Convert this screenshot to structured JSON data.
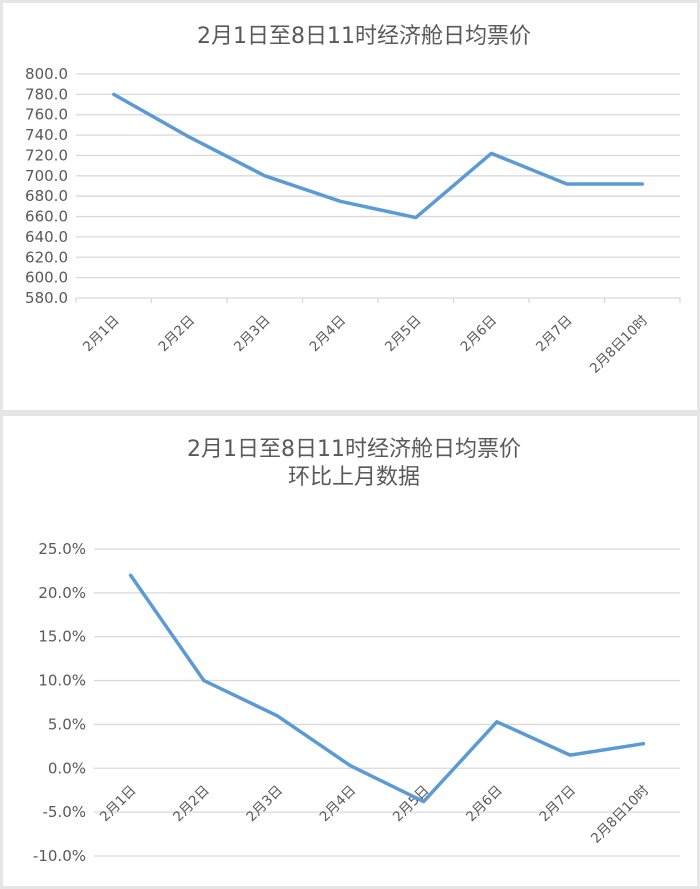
{
  "colors": {
    "line": "#5b9bd5",
    "grid": "#d9d9d9",
    "text": "#595959"
  },
  "chart_data": [
    {
      "type": "line",
      "title": "2月1日至8日11时经济舱日均票价",
      "xlabel": "",
      "ylabel": "",
      "categories": [
        "2月1日",
        "2月2日",
        "2月3日",
        "2月4日",
        "2月5日",
        "2月6日",
        "2月7日",
        "2月8日10时"
      ],
      "series": [
        {
          "name": "经济舱日均票价",
          "values": [
            780,
            738,
            700,
            675,
            659,
            722,
            692,
            692
          ]
        }
      ],
      "ylim": [
        580,
        800
      ],
      "yticks": [
        "800.0",
        "780.0",
        "760.0",
        "740.0",
        "720.0",
        "700.0",
        "680.0",
        "660.0",
        "640.0",
        "620.0",
        "600.0",
        "580.0"
      ],
      "grid": true,
      "legend": "none"
    },
    {
      "type": "line",
      "title": "2月1日至8日11时经济舱日均票价",
      "subtitle": "环比上月数据",
      "xlabel": "",
      "ylabel": "",
      "categories": [
        "2月1日",
        "2月2日",
        "2月3日",
        "2月4日",
        "2月5日",
        "2月6日",
        "2月7日",
        "2月8日10时"
      ],
      "series": [
        {
          "name": "环比上月",
          "values": [
            22.0,
            10.0,
            6.0,
            0.3,
            -3.8,
            5.3,
            1.5,
            2.8
          ],
          "unit": "%"
        }
      ],
      "ylim": [
        -10,
        25
      ],
      "yticks": [
        "25.0%",
        "20.0%",
        "15.0%",
        "10.0%",
        "5.0%",
        "0.0%",
        "-5.0%",
        "-10.0%"
      ],
      "grid": true,
      "legend": "none"
    }
  ]
}
